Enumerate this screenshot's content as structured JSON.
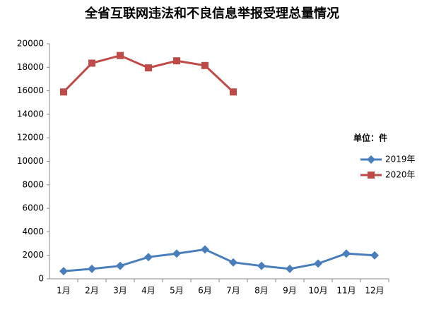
{
  "chart_data": {
    "type": "line",
    "title": "全省互联网违法和不良信息举报受理总量情况",
    "categories": [
      "1月",
      "2月",
      "3月",
      "4月",
      "5月",
      "6月",
      "7月",
      "8月",
      "9月",
      "10月",
      "11月",
      "12月"
    ],
    "series": [
      {
        "name": "2019年",
        "color": "#4a7ebb",
        "marker": "diamond",
        "values": [
          650,
          850,
          1100,
          1850,
          2150,
          2500,
          1400,
          1100,
          850,
          1300,
          2150,
          2000
        ]
      },
      {
        "name": "2020年",
        "color": "#be4b48",
        "marker": "square",
        "values": [
          15900,
          18350,
          19000,
          17950,
          18550,
          18150,
          15900,
          null,
          null,
          null,
          null,
          null
        ]
      }
    ],
    "unit_label": "单位：件",
    "ylim": [
      0,
      20000
    ],
    "yticks": [
      0,
      2000,
      4000,
      6000,
      8000,
      10000,
      12000,
      14000,
      16000,
      18000,
      20000
    ],
    "grid": false
  }
}
